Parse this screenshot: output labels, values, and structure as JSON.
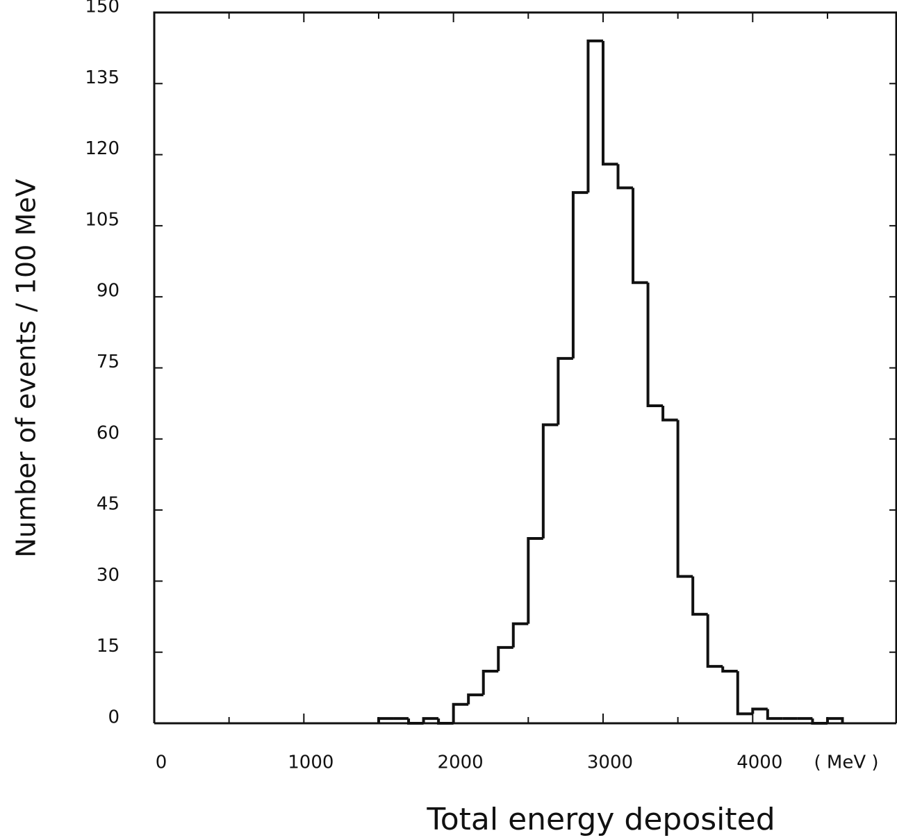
{
  "chart_data": {
    "type": "histogram",
    "xlabel": "Total energy deposited",
    "ylabel": "Number of events  / 100 MeV",
    "x_unit": "( MeV )",
    "bins": [
      1500,
      1600,
      1700,
      1800,
      1900,
      2000,
      2100,
      2200,
      2300,
      2400,
      2500,
      2600,
      2700,
      2800,
      2900,
      3000,
      3100,
      3200,
      3300,
      3400,
      3500,
      3600,
      3700,
      3800,
      3900,
      4000,
      4100,
      4200,
      4300,
      4400,
      4500,
      4600
    ],
    "values": [
      1,
      1,
      0,
      1,
      0,
      4,
      6,
      11,
      16,
      21,
      39,
      63,
      77,
      112,
      144,
      118,
      113,
      93,
      67,
      64,
      31,
      23,
      12,
      11,
      2,
      3,
      1,
      1,
      1,
      0,
      1
    ],
    "color": "#111111",
    "xlim": [
      0,
      4960
    ],
    "xticks": [
      0,
      1000,
      2000,
      3000,
      4000
    ],
    "xminor_ticks": [
      500,
      1500,
      2500,
      3500,
      4500
    ],
    "ylim": [
      0,
      150
    ],
    "yticks": [
      0,
      15,
      30,
      45,
      60,
      75,
      90,
      105,
      120,
      135,
      150
    ]
  }
}
